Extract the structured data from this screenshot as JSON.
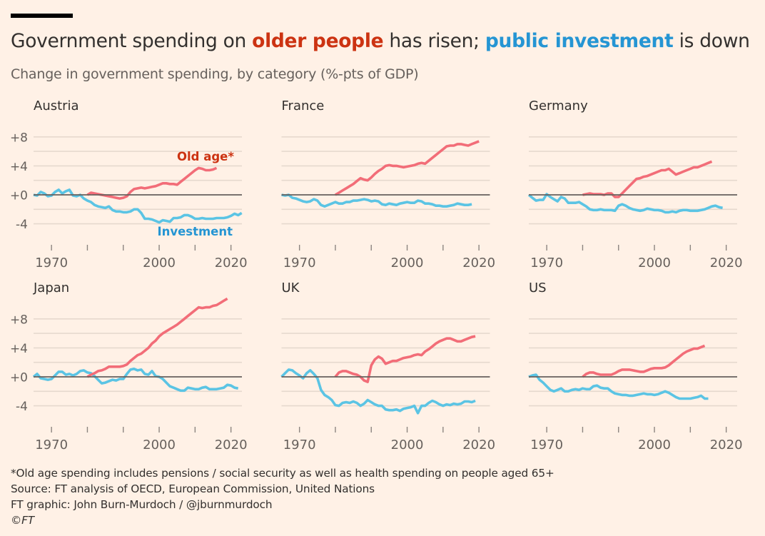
{
  "header": {
    "title_parts": [
      {
        "text": "Government spending on ",
        "style": "normal"
      },
      {
        "text": "older people",
        "style": "old"
      },
      {
        "text": " has risen; ",
        "style": "normal"
      },
      {
        "text": "public investment",
        "style": "inv"
      },
      {
        "text": " is down",
        "style": "normal"
      }
    ],
    "subtitle": "Change in government spending, by category (%-pts of GDP)"
  },
  "colors": {
    "old_age": "#f26d78",
    "investment": "#5bc4e4",
    "old_age_label": "#cc3312",
    "investment_label": "#2595d3",
    "zero_line": "#66605c",
    "grid": "#e6d9ce"
  },
  "chart_data": {
    "type": "line",
    "title": "Government spending on older people has risen; public investment is down",
    "subtitle": "Change in government spending, by category (%-pts of GDP)",
    "xlabel": "",
    "ylabel": "%-pts of GDP",
    "xlim": [
      1965,
      2023
    ],
    "ylim": [
      -6,
      11
    ],
    "x_ticks": [
      1970,
      1980,
      1990,
      2000,
      2010,
      2020
    ],
    "x_tick_labels": [
      "1970",
      "",
      "",
      "2000",
      "",
      "2020"
    ],
    "y_ticks": [
      8,
      6,
      4,
      2,
      0,
      -2,
      -4
    ],
    "y_tick_labels": [
      "+8",
      "",
      "+4",
      "",
      "+0",
      "",
      "-4"
    ],
    "grid": true,
    "legend": "inline labels in Austria panel",
    "series_labels": {
      "old_age": "Old age*",
      "investment": "Investment"
    },
    "panels": [
      {
        "name": "Austria",
        "show_y_labels": true,
        "show_series_labels": true,
        "series": [
          {
            "name": "Investment",
            "key": "investment",
            "start_year": 1965,
            "values": [
              0,
              -0.1,
              0.4,
              0.2,
              -0.2,
              -0.1,
              0.4,
              0.7,
              0.2,
              0.5,
              0.7,
              -0.1,
              -0.2,
              0,
              -0.5,
              -0.8,
              -1.0,
              -1.4,
              -1.6,
              -1.7,
              -1.8,
              -1.6,
              -2.1,
              -2.3,
              -2.3,
              -2.4,
              -2.4,
              -2.3,
              -2.0,
              -2.0,
              -2.5,
              -3.3,
              -3.3,
              -3.4,
              -3.6,
              -3.8,
              -3.5,
              -3.6,
              -3.7,
              -3.2,
              -3.2,
              -3.1,
              -2.8,
              -2.8,
              -3.0,
              -3.3,
              -3.3,
              -3.2,
              -3.3,
              -3.3,
              -3.3,
              -3.2,
              -3.2,
              -3.2,
              -3.1,
              -2.9,
              -2.6,
              -2.8,
              -2.5
            ]
          },
          {
            "name": "Old age*",
            "key": "old_age",
            "start_year": 1980,
            "values": [
              0,
              0.3,
              0.2,
              0.1,
              0,
              -0.1,
              -0.2,
              -0.3,
              -0.4,
              -0.5,
              -0.4,
              -0.2,
              0.4,
              0.8,
              0.9,
              1.0,
              0.9,
              1.0,
              1.1,
              1.2,
              1.4,
              1.6,
              1.6,
              1.5,
              1.5,
              1.4,
              1.8,
              2.2,
              2.6,
              3.0,
              3.4,
              3.7,
              3.6,
              3.4,
              3.4,
              3.5,
              3.7
            ]
          }
        ]
      },
      {
        "name": "France",
        "show_y_labels": false,
        "show_series_labels": false,
        "series": [
          {
            "name": "Investment",
            "key": "investment",
            "start_year": 1965,
            "values": [
              0,
              -0.1,
              0,
              -0.4,
              -0.5,
              -0.7,
              -0.9,
              -1.0,
              -0.9,
              -0.6,
              -0.8,
              -1.4,
              -1.6,
              -1.4,
              -1.2,
              -1.0,
              -1.2,
              -1.2,
              -1.0,
              -1.0,
              -0.8,
              -0.8,
              -0.7,
              -0.6,
              -0.7,
              -0.9,
              -0.8,
              -0.9,
              -1.3,
              -1.4,
              -1.2,
              -1.3,
              -1.4,
              -1.2,
              -1.1,
              -1.0,
              -1.1,
              -1.1,
              -0.8,
              -0.9,
              -1.2,
              -1.2,
              -1.3,
              -1.5,
              -1.5,
              -1.6,
              -1.6,
              -1.5,
              -1.4,
              -1.2,
              -1.3,
              -1.4,
              -1.4,
              -1.3
            ]
          },
          {
            "name": "Old age*",
            "key": "old_age",
            "start_year": 1980,
            "values": [
              0,
              0.3,
              0.6,
              0.9,
              1.2,
              1.5,
              1.9,
              2.3,
              2.1,
              2.0,
              2.4,
              2.9,
              3.3,
              3.6,
              4.0,
              4.1,
              4.0,
              4.0,
              3.9,
              3.8,
              3.9,
              4.0,
              4.1,
              4.3,
              4.4,
              4.3,
              4.7,
              5.1,
              5.5,
              5.9,
              6.3,
              6.7,
              6.8,
              6.8,
              7.0,
              7.0,
              6.9,
              6.8,
              7.0,
              7.2,
              7.4
            ]
          }
        ]
      },
      {
        "name": "Germany",
        "show_y_labels": false,
        "show_series_labels": false,
        "series": [
          {
            "name": "Investment",
            "key": "investment",
            "start_year": 1965,
            "values": [
              0,
              -0.4,
              -0.8,
              -0.7,
              -0.7,
              0.1,
              -0.3,
              -0.6,
              -0.9,
              -0.3,
              -0.5,
              -1.1,
              -1.1,
              -1.1,
              -1.0,
              -1.3,
              -1.6,
              -2.0,
              -2.1,
              -2.1,
              -2.0,
              -2.1,
              -2.1,
              -2.1,
              -2.2,
              -1.5,
              -1.3,
              -1.5,
              -1.8,
              -2.0,
              -2.1,
              -2.2,
              -2.1,
              -1.9,
              -2.0,
              -2.1,
              -2.1,
              -2.2,
              -2.4,
              -2.4,
              -2.3,
              -2.4,
              -2.2,
              -2.1,
              -2.1,
              -2.2,
              -2.2,
              -2.2,
              -2.1,
              -2.0,
              -1.8,
              -1.6,
              -1.5,
              -1.7,
              -1.8
            ]
          },
          {
            "name": "Old age*",
            "key": "old_age",
            "start_year": 1980,
            "values": [
              0,
              0.1,
              0.2,
              0.1,
              0.1,
              0.1,
              0,
              0.2,
              0.2,
              -0.3,
              -0.3,
              0.2,
              0.7,
              1.2,
              1.7,
              2.2,
              2.3,
              2.5,
              2.6,
              2.8,
              3.0,
              3.2,
              3.4,
              3.4,
              3.6,
              3.2,
              2.8,
              3.0,
              3.2,
              3.4,
              3.6,
              3.8,
              3.8,
              4.0,
              4.2,
              4.4,
              4.6
            ]
          }
        ]
      },
      {
        "name": "Japan",
        "show_y_labels": true,
        "show_series_labels": false,
        "series": [
          {
            "name": "Investment",
            "key": "investment",
            "start_year": 1965,
            "values": [
              0,
              0.4,
              -0.2,
              -0.3,
              -0.4,
              -0.3,
              0.2,
              0.7,
              0.7,
              0.3,
              0.4,
              0.2,
              0.4,
              0.8,
              0.9,
              0.6,
              0.5,
              0.1,
              -0.4,
              -0.9,
              -0.8,
              -0.6,
              -0.4,
              -0.5,
              -0.3,
              -0.3,
              0.4,
              1.0,
              1.1,
              0.9,
              1.0,
              0.4,
              0.3,
              0.8,
              0.1,
              0,
              -0.3,
              -0.8,
              -1.3,
              -1.5,
              -1.7,
              -1.9,
              -1.9,
              -1.5,
              -1.6,
              -1.7,
              -1.7,
              -1.5,
              -1.4,
              -1.7,
              -1.7,
              -1.7,
              -1.6,
              -1.5,
              -1.1,
              -1.2,
              -1.5,
              -1.6
            ]
          },
          {
            "name": "Old age*",
            "key": "old_age",
            "start_year": 1980,
            "values": [
              0,
              0.3,
              0.5,
              0.8,
              0.9,
              1.1,
              1.4,
              1.4,
              1.4,
              1.4,
              1.5,
              1.7,
              2.2,
              2.6,
              3.0,
              3.2,
              3.6,
              4.0,
              4.6,
              5.0,
              5.6,
              6.0,
              6.3,
              6.6,
              6.9,
              7.2,
              7.6,
              8.0,
              8.4,
              8.8,
              9.2,
              9.6,
              9.5,
              9.6,
              9.6,
              9.8,
              9.9,
              10.2,
              10.5,
              10.8
            ]
          }
        ]
      },
      {
        "name": "UK",
        "show_y_labels": false,
        "show_series_labels": false,
        "series": [
          {
            "name": "Investment",
            "key": "investment",
            "start_year": 1965,
            "values": [
              0,
              0.5,
              1.0,
              0.9,
              0.5,
              0.2,
              -0.2,
              0.5,
              0.9,
              0.4,
              -0.2,
              -1.8,
              -2.5,
              -2.8,
              -3.2,
              -3.9,
              -4.0,
              -3.6,
              -3.5,
              -3.6,
              -3.4,
              -3.6,
              -4.0,
              -3.7,
              -3.2,
              -3.5,
              -3.8,
              -4.0,
              -4.0,
              -4.5,
              -4.6,
              -4.6,
              -4.5,
              -4.7,
              -4.4,
              -4.3,
              -4.2,
              -4.0,
              -5.0,
              -4.0,
              -4.0,
              -3.6,
              -3.3,
              -3.5,
              -3.8,
              -4.0,
              -3.8,
              -3.9,
              -3.7,
              -3.8,
              -3.7,
              -3.4,
              -3.4,
              -3.5,
              -3.3
            ]
          },
          {
            "name": "Old age*",
            "key": "old_age",
            "start_year": 1980,
            "values": [
              0,
              0.6,
              0.8,
              0.8,
              0.6,
              0.4,
              0.3,
              0,
              -0.5,
              -0.7,
              1.6,
              2.4,
              2.8,
              2.5,
              1.8,
              2.0,
              2.2,
              2.2,
              2.4,
              2.6,
              2.7,
              2.8,
              3.0,
              3.1,
              3.0,
              3.5,
              3.8,
              4.2,
              4.6,
              4.9,
              5.1,
              5.3,
              5.3,
              5.1,
              4.9,
              4.9,
              5.1,
              5.3,
              5.5,
              5.6
            ]
          }
        ]
      },
      {
        "name": "US",
        "show_y_labels": false,
        "show_series_labels": false,
        "series": [
          {
            "name": "Investment",
            "key": "investment",
            "start_year": 1965,
            "values": [
              0,
              0.2,
              0.3,
              -0.4,
              -0.8,
              -1.3,
              -1.8,
              -2.0,
              -1.8,
              -1.6,
              -2.0,
              -2.0,
              -1.8,
              -1.7,
              -1.8,
              -1.6,
              -1.7,
              -1.7,
              -1.3,
              -1.2,
              -1.5,
              -1.6,
              -1.6,
              -2.0,
              -2.3,
              -2.4,
              -2.5,
              -2.5,
              -2.6,
              -2.6,
              -2.5,
              -2.4,
              -2.3,
              -2.4,
              -2.4,
              -2.5,
              -2.4,
              -2.2,
              -2.0,
              -2.2,
              -2.5,
              -2.8,
              -3.0,
              -3.0,
              -3.0,
              -3.0,
              -2.9,
              -2.8,
              -2.6,
              -3.0,
              -3.0
            ]
          },
          {
            "name": "Old age*",
            "key": "old_age",
            "start_year": 1980,
            "values": [
              0,
              0.4,
              0.6,
              0.6,
              0.4,
              0.3,
              0.3,
              0.3,
              0.3,
              0.5,
              0.8,
              1.0,
              1.0,
              1.0,
              0.9,
              0.8,
              0.7,
              0.7,
              0.9,
              1.1,
              1.2,
              1.2,
              1.2,
              1.3,
              1.6,
              2.0,
              2.4,
              2.8,
              3.2,
              3.5,
              3.7,
              3.9,
              3.9,
              4.1,
              4.3
            ]
          }
        ]
      }
    ]
  },
  "footer": {
    "note": "*Old age spending includes pensions / social security as well as health spending on people aged 65+",
    "source": "Source: FT analysis of OECD, European Commission, United Nations",
    "credit": "FT graphic: John Burn-Murdoch / @jburnmurdoch",
    "copyright": "©FT"
  }
}
